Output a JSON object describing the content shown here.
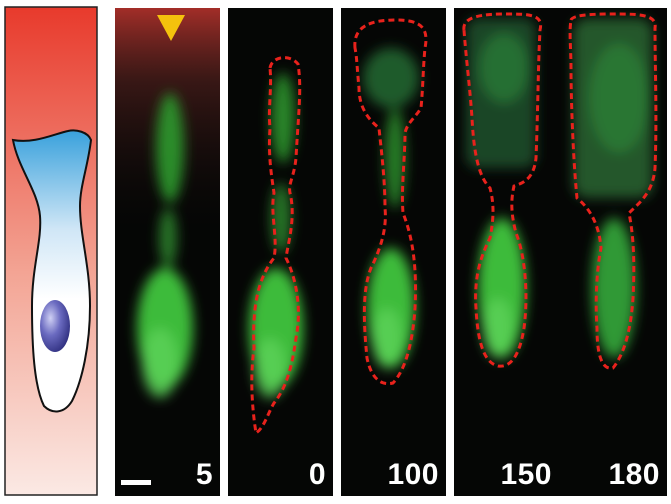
{
  "figure": {
    "panels": [
      {
        "id": "p1",
        "label": "5"
      },
      {
        "id": "p2",
        "label": "0"
      },
      {
        "id": "p3",
        "label": "100"
      },
      {
        "id": "p4",
        "label": "150"
      },
      {
        "id": "p5",
        "label": "180"
      }
    ],
    "colors": {
      "gradient_high": "#e83a2c",
      "gradient_low": "#fbe5df",
      "cell_top": "#3aa3dc",
      "cell_body": "#ffffff",
      "nucleus": "#4b4ba8",
      "fluorescence": "#3fc23c",
      "outline": "#e8221c",
      "pipette_marker": "#f4c20d",
      "frame_background": "#050605"
    }
  }
}
